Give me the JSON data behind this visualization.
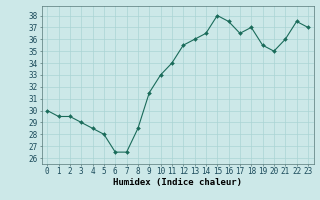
{
  "x": [
    0,
    1,
    2,
    3,
    4,
    5,
    6,
    7,
    8,
    9,
    10,
    11,
    12,
    13,
    14,
    15,
    16,
    17,
    18,
    19,
    20,
    21,
    22,
    23
  ],
  "y": [
    30.0,
    29.5,
    29.5,
    29.0,
    28.5,
    28.0,
    26.5,
    26.5,
    28.5,
    31.5,
    33.0,
    34.0,
    35.5,
    36.0,
    36.5,
    38.0,
    37.5,
    36.5,
    37.0,
    35.5,
    35.0,
    36.0,
    37.5,
    37.0
  ],
  "line_color": "#1a6b5a",
  "marker_color": "#1a6b5a",
  "bg_color": "#cce8e8",
  "grid_color": "#aad4d4",
  "xlabel": "Humidex (Indice chaleur)",
  "xlim": [
    -0.5,
    23.5
  ],
  "ylim": [
    25.5,
    38.8
  ],
  "yticks": [
    26,
    27,
    28,
    29,
    30,
    31,
    32,
    33,
    34,
    35,
    36,
    37,
    38
  ],
  "xticks": [
    0,
    1,
    2,
    3,
    4,
    5,
    6,
    7,
    8,
    9,
    10,
    11,
    12,
    13,
    14,
    15,
    16,
    17,
    18,
    19,
    20,
    21,
    22,
    23
  ],
  "xlabel_fontsize": 6.5,
  "tick_fontsize": 5.5
}
